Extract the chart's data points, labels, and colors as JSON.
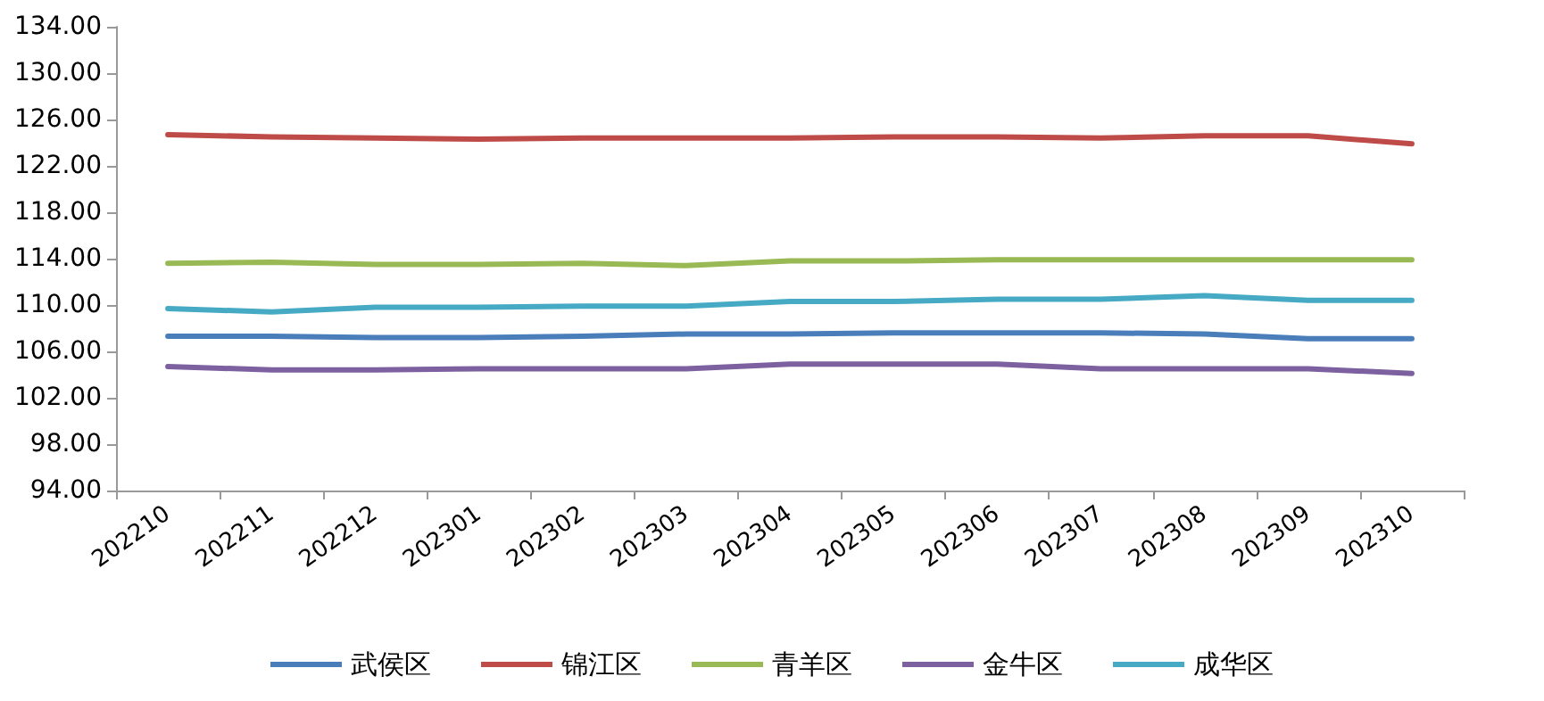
{
  "chart_data": {
    "type": "line",
    "categories": [
      "202210",
      "202211",
      "202212",
      "202301",
      "202302",
      "202303",
      "202304",
      "202305",
      "202306",
      "202307",
      "202308",
      "202309",
      "202310"
    ],
    "series": [
      {
        "name": "武侯区",
        "color": "#4a7ebb",
        "values": [
          107.3,
          107.3,
          107.2,
          107.2,
          107.3,
          107.5,
          107.5,
          107.6,
          107.6,
          107.6,
          107.5,
          107.1,
          107.1
        ]
      },
      {
        "name": "锦江区",
        "color": "#be4b48",
        "values": [
          124.7,
          124.5,
          124.4,
          124.3,
          124.4,
          124.4,
          124.4,
          124.5,
          124.5,
          124.4,
          124.6,
          124.6,
          123.9
        ]
      },
      {
        "name": "青羊区",
        "color": "#98b954",
        "values": [
          113.6,
          113.7,
          113.5,
          113.5,
          113.6,
          113.4,
          113.8,
          113.8,
          113.9,
          113.9,
          113.9,
          113.9,
          113.9
        ]
      },
      {
        "name": "金牛区",
        "color": "#7d60a0",
        "values": [
          104.7,
          104.4,
          104.4,
          104.5,
          104.5,
          104.5,
          104.9,
          104.9,
          104.9,
          104.5,
          104.5,
          104.5,
          104.1
        ]
      },
      {
        "name": "成华区",
        "color": "#46aac5",
        "values": [
          109.7,
          109.4,
          109.8,
          109.8,
          109.9,
          109.9,
          110.3,
          110.3,
          110.5,
          110.5,
          110.8,
          110.4,
          110.4
        ]
      }
    ],
    "ylim": [
      94,
      134
    ],
    "yticks": [
      {
        "value": 94,
        "label": "94.00"
      },
      {
        "value": 98,
        "label": "98.00"
      },
      {
        "value": 102,
        "label": "102.00"
      },
      {
        "value": 106,
        "label": "106.00"
      },
      {
        "value": 110,
        "label": "110.00"
      },
      {
        "value": 114,
        "label": "114.00"
      },
      {
        "value": 118,
        "label": "118.00"
      },
      {
        "value": 122,
        "label": "122.00"
      },
      {
        "value": 126,
        "label": "126.00"
      },
      {
        "value": 130,
        "label": "130.00"
      },
      {
        "value": 134,
        "label": "134.00"
      }
    ],
    "grid": false,
    "legend": "bottom",
    "marker": "none",
    "line_style": "solid"
  }
}
